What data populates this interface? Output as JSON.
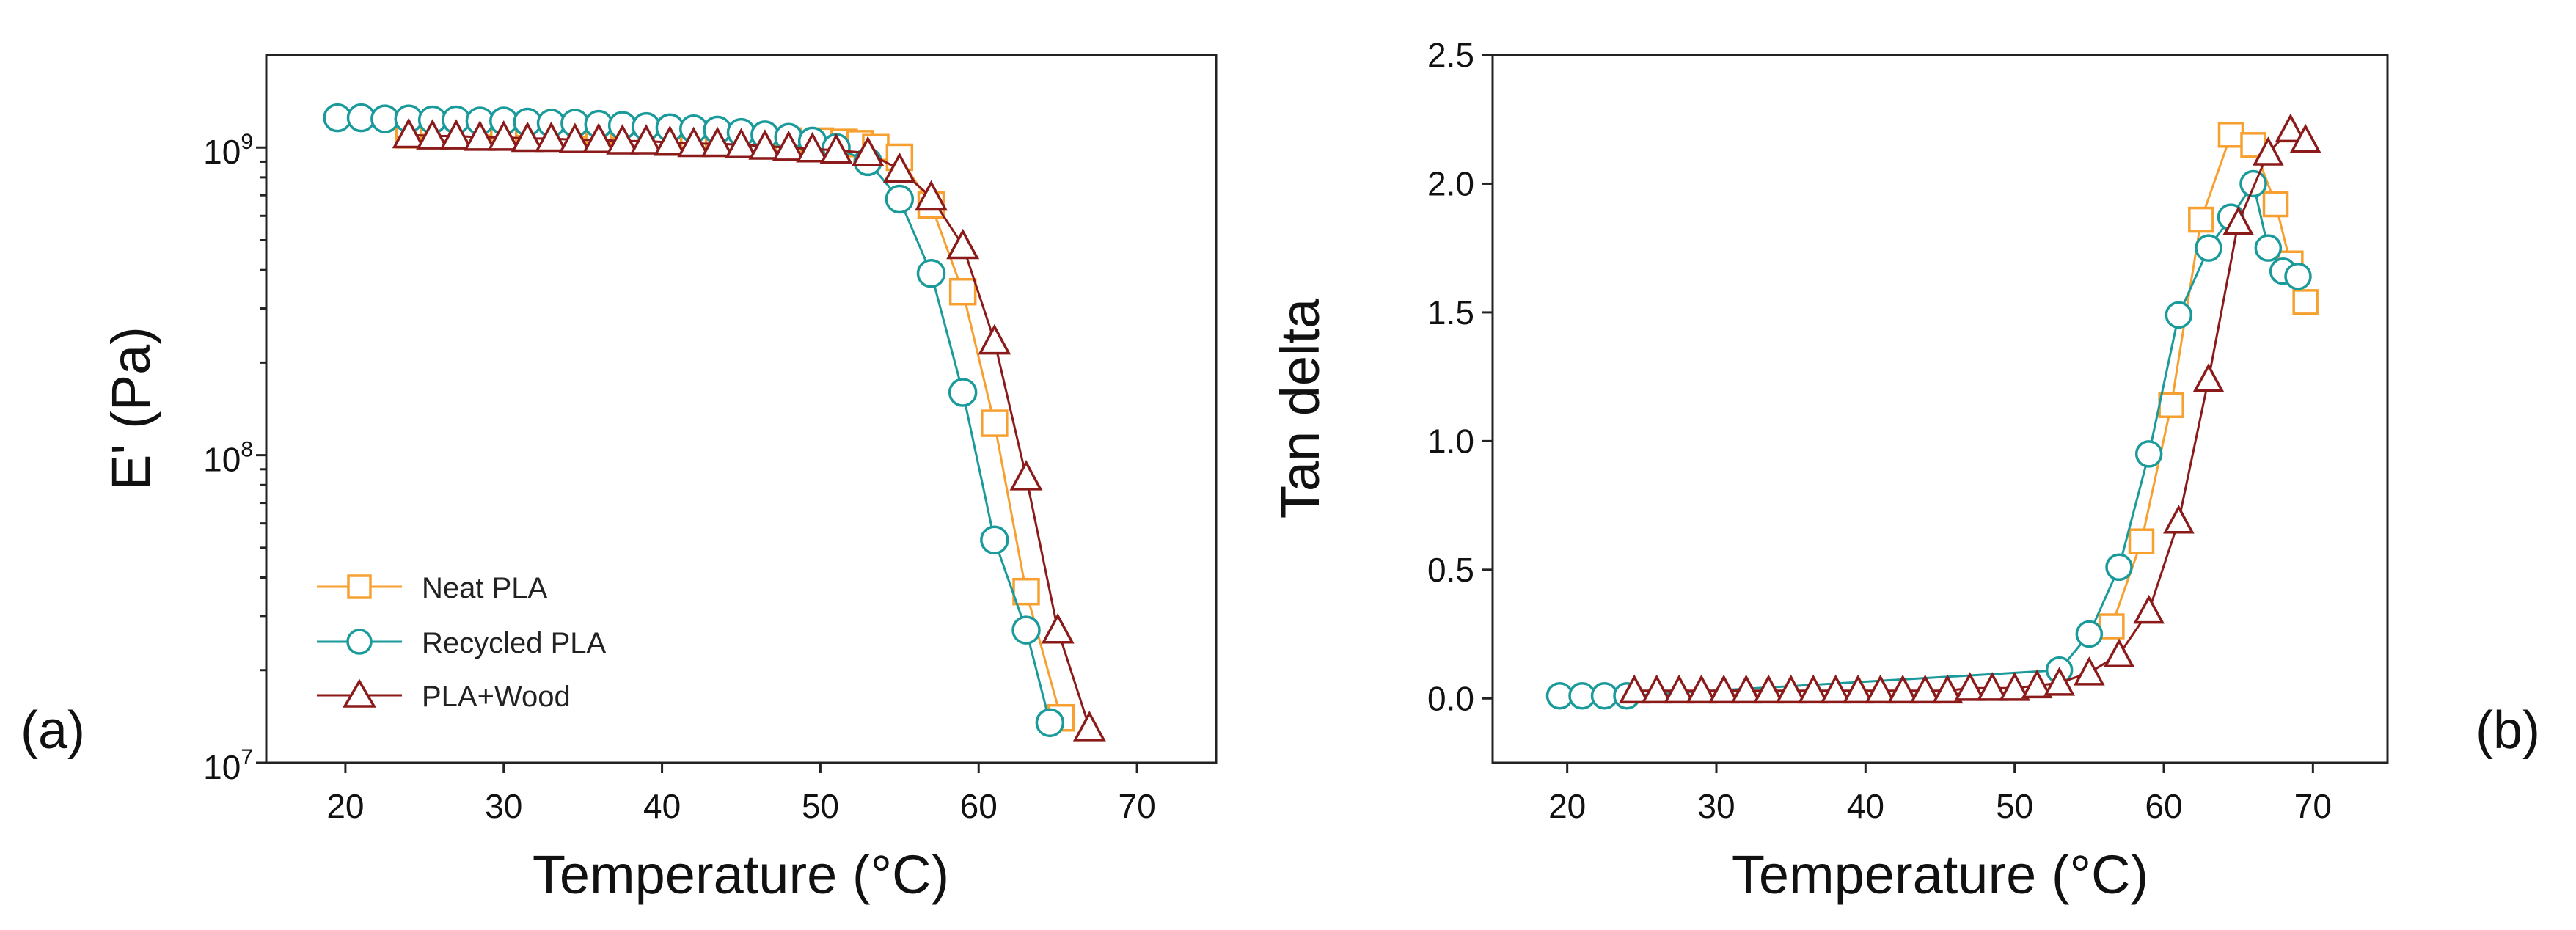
{
  "chart_data": [
    {
      "type": "line",
      "panel_label": "(a)",
      "xlabel": "Temperature (°C)",
      "ylabel": "E' (Pa)",
      "yscale": "log",
      "xlim": [
        15,
        75
      ],
      "ylim": [
        10000000,
        2000000000
      ],
      "xticks": [
        20,
        30,
        40,
        50,
        60,
        70
      ],
      "xtick_labels": [
        "20",
        "30",
        "40",
        "50",
        "60",
        "70"
      ],
      "yticks": [
        10000000,
        100000000,
        1000000000
      ],
      "ytick_labels": [
        {
          "base": "10",
          "exp": "7"
        },
        {
          "base": "10",
          "exp": "8"
        },
        {
          "base": "10",
          "exp": "9"
        }
      ],
      "legend_position": "bottom-left",
      "series": [
        {
          "name": "Neat PLA",
          "color": "#F7A030",
          "marker": "square",
          "x": [
            24,
            26,
            28,
            30,
            32,
            34,
            36,
            38,
            40,
            42,
            44,
            46,
            48,
            50,
            51.5,
            52.5,
            53.5,
            55,
            57,
            59,
            61,
            63,
            65.2
          ],
          "y": [
            1100000000,
            1100000000,
            1100000000,
            1090000000,
            1090000000,
            1080000000,
            1080000000,
            1070000000,
            1070000000,
            1070000000,
            1060000000,
            1060000000,
            1050000000,
            1050000000,
            1040000000,
            1030000000,
            1000000000,
            930000000,
            650000000,
            340000000,
            127000000,
            36000000,
            14000000
          ]
        },
        {
          "name": "Recycled PLA",
          "color": "#1A9A9A",
          "marker": "circle",
          "x": [
            19.5,
            21,
            22.5,
            24,
            25.5,
            27,
            28.5,
            30,
            31.5,
            33,
            34.5,
            36,
            37.5,
            39,
            40.5,
            42,
            43.5,
            45,
            46.5,
            48,
            49.5,
            51,
            53,
            55,
            57,
            59,
            61,
            63,
            64.5
          ],
          "y": [
            1250000000,
            1250000000,
            1240000000,
            1240000000,
            1230000000,
            1230000000,
            1220000000,
            1220000000,
            1210000000,
            1200000000,
            1200000000,
            1190000000,
            1180000000,
            1170000000,
            1160000000,
            1150000000,
            1140000000,
            1120000000,
            1100000000,
            1080000000,
            1050000000,
            1000000000,
            900000000,
            680000000,
            390000000,
            160000000,
            53000000,
            27000000,
            13500000
          ]
        },
        {
          "name": "PLA+Wood",
          "color": "#8B1A1A",
          "marker": "triangle",
          "x": [
            24,
            25.5,
            27,
            28.5,
            30,
            31.5,
            33,
            34.5,
            36,
            37.5,
            39,
            40.5,
            42,
            43.5,
            45,
            46.5,
            48,
            49.5,
            51,
            53,
            55,
            57,
            59,
            61,
            63,
            65,
            67
          ],
          "y": [
            1100000000,
            1090000000,
            1090000000,
            1080000000,
            1080000000,
            1070000000,
            1070000000,
            1060000000,
            1060000000,
            1050000000,
            1050000000,
            1040000000,
            1030000000,
            1030000000,
            1020000000,
            1010000000,
            1000000000,
            990000000,
            980000000,
            960000000,
            850000000,
            690000000,
            480000000,
            235000000,
            85000000,
            27000000,
            13000000
          ]
        }
      ]
    },
    {
      "type": "line",
      "panel_label": "(b)",
      "xlabel": "Temperature (°C)",
      "ylabel": "Tan delta",
      "yscale": "linear",
      "xlim": [
        15,
        75
      ],
      "ylim": [
        -0.25,
        2.5
      ],
      "xticks": [
        20,
        30,
        40,
        50,
        60,
        70
      ],
      "xtick_labels": [
        "20",
        "30",
        "40",
        "50",
        "60",
        "70"
      ],
      "yticks": [
        0,
        0.5,
        1,
        1.5,
        2,
        2.5
      ],
      "ytick_labels": [
        "0.0",
        "0.5",
        "1.0",
        "1.5",
        "2.0",
        "2.5"
      ],
      "series": [
        {
          "name": "Neat PLA",
          "color": "#F7A030",
          "marker": "square",
          "x": [
            56.5,
            58.5,
            60.5,
            62.5,
            64.5,
            66,
            67.5,
            68.5,
            69.5
          ],
          "y": [
            0.28,
            0.61,
            1.14,
            1.86,
            2.19,
            2.15,
            1.92,
            1.69,
            1.54
          ]
        },
        {
          "name": "Recycled PLA",
          "color": "#1A9A9A",
          "marker": "circle",
          "x": [
            19.5,
            21,
            22.5,
            24,
            53,
            55,
            57,
            59,
            61,
            63,
            64.5,
            66,
            67,
            68,
            69
          ],
          "y": [
            0.01,
            0.01,
            0.01,
            0.01,
            0.11,
            0.25,
            0.51,
            0.95,
            1.49,
            1.75,
            1.87,
            2.0,
            1.75,
            1.66,
            1.64
          ]
        },
        {
          "name": "PLA+Wood",
          "color": "#8B1A1A",
          "marker": "triangle",
          "x": [
            24.5,
            26,
            27.5,
            29,
            30.5,
            32,
            33.5,
            35,
            36.5,
            38,
            39.5,
            41,
            42.5,
            44,
            45.5,
            47,
            48.5,
            50,
            51.5,
            53,
            55,
            57,
            59,
            61,
            63,
            65,
            67,
            68.5,
            69.5
          ],
          "y": [
            0.03,
            0.03,
            0.03,
            0.03,
            0.03,
            0.03,
            0.03,
            0.03,
            0.03,
            0.03,
            0.03,
            0.03,
            0.03,
            0.03,
            0.03,
            0.04,
            0.04,
            0.04,
            0.05,
            0.06,
            0.1,
            0.17,
            0.34,
            0.69,
            1.24,
            1.85,
            2.12,
            2.21,
            2.17
          ]
        }
      ]
    }
  ]
}
